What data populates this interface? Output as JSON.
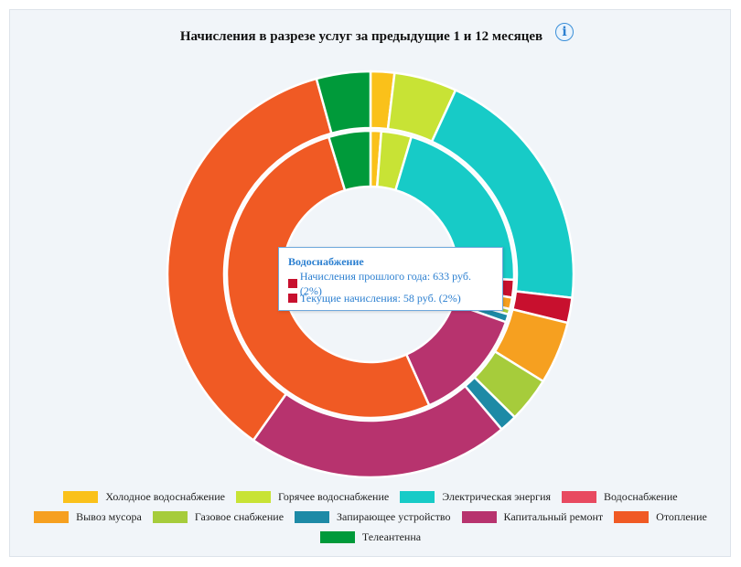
{
  "chart_data": {
    "type": "pie",
    "title": "Начисления в разрезе услуг за предыдущие 1 и 12 месяцев",
    "categories": [
      "Холодное водоснабжение",
      "Горячее водоснабжение",
      "Электрическая энергия",
      "Водоснабжение",
      "Вывоз мусора",
      "Газовое снабжение",
      "Запирающее устройство",
      "Капитальный ремонт",
      "Отопление",
      "Телеантенна"
    ],
    "colors": [
      "#fac11a",
      "#c8e335",
      "#17cbc7",
      "#c8102e",
      "#f6a020",
      "#a6cc3b",
      "#1d8aa6",
      "#b7336e",
      "#f05a24",
      "#009a3a"
    ],
    "legend_colors": [
      "#fac11a",
      "#c8e335",
      "#17cbc7",
      "#e84a60",
      "#f6a020",
      "#a6cc3b",
      "#1d8aa6",
      "#b7336e",
      "#f05a24",
      "#009a3a"
    ],
    "series": [
      {
        "name": "Начисления прошлого года",
        "values": [
          1.9,
          5.0,
          20.0,
          2.0,
          5.0,
          3.6,
          1.4,
          21.0,
          36.0,
          4.3
        ]
      },
      {
        "name": "Текущие начисления",
        "values": [
          1.2,
          3.4,
          21.0,
          2.0,
          1.3,
          0.6,
          0.9,
          12.9,
          52.0,
          4.7
        ]
      }
    ],
    "legend_position": "bottom"
  },
  "info_icon": "info-icon",
  "tooltip": {
    "title": "Водоснабжение",
    "rows": [
      {
        "text": "Начисления прошлого года: 633 руб. (2%)",
        "color": "#c8102e"
      },
      {
        "text": "Текущие начисления: 58 руб. (2%)",
        "color": "#c8102e"
      }
    ]
  }
}
